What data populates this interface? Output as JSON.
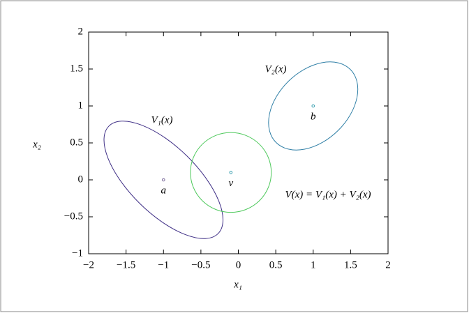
{
  "chart_data": {
    "type": "ellipse",
    "xlabel": "x₁",
    "ylabel": "x₂",
    "xlim": [
      -2,
      2
    ],
    "ylim": [
      -1,
      2
    ],
    "xticks": [
      {
        "value": -2,
        "label": "−2"
      },
      {
        "value": -1.5,
        "label": "−1.5"
      },
      {
        "value": -1,
        "label": "−1"
      },
      {
        "value": -0.5,
        "label": "−0.5"
      },
      0,
      0.5,
      1,
      1.5,
      2
    ],
    "yticks": [
      {
        "value": -1,
        "label": "−1"
      },
      {
        "value": -0.5,
        "label": "−0.5"
      },
      0,
      0.5,
      1,
      1.5,
      2
    ],
    "shapes": [
      {
        "label": "V₁(x)",
        "color": "#3f2f86",
        "center": [
          -1,
          0
        ],
        "radii": [
          1.03,
          0.45
        ],
        "angle": -45
      },
      {
        "label": "V₂(x)",
        "color": "#2f7fa6",
        "center": [
          1,
          1
        ],
        "radii": [
          0.7,
          0.47
        ],
        "angle": 45
      },
      {
        "label": "V(x) = V₁(x) + V₂(x)",
        "color": "#4cc85a",
        "center": [
          -0.1,
          0.1
        ],
        "radii": [
          0.54,
          0.54
        ],
        "angle": 0
      }
    ],
    "points": [
      {
        "label": "a",
        "x": -1,
        "y": 0,
        "color": "#7a6a9a"
      },
      {
        "label": "b",
        "x": 1,
        "y": 1,
        "color": "#3aa0b0"
      },
      {
        "label": "v",
        "x": -0.1,
        "y": 0.1,
        "color": "#3aa0b0"
      }
    ]
  }
}
